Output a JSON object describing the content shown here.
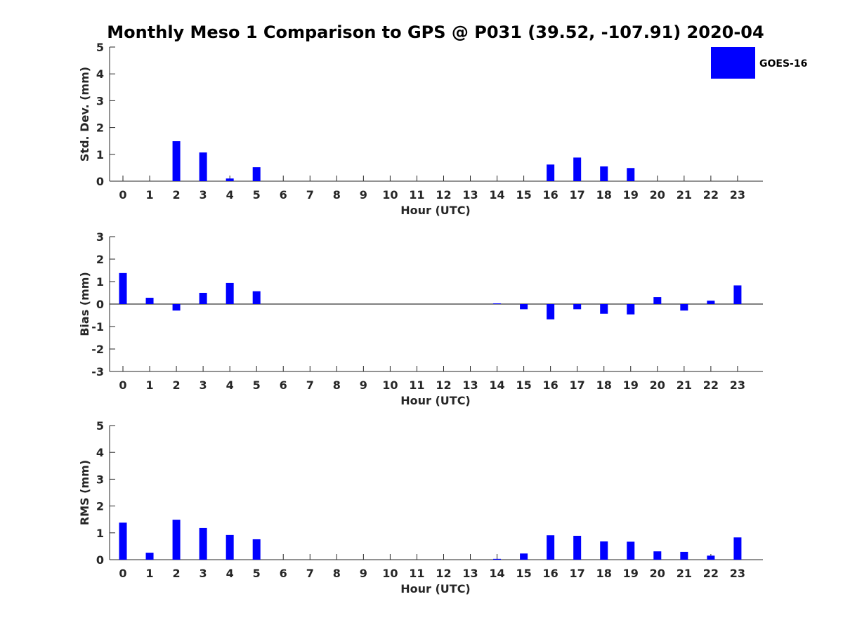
{
  "title": "Monthly Meso 1 Comparison to GPS @ P031 (39.52, -107.91) 2020-04",
  "legend": {
    "label": "GOES-16",
    "color": "#0000ff",
    "placement": "top-right"
  },
  "chart_data": [
    {
      "type": "bar",
      "ylabel": "Std. Dev. (mm)",
      "xlabel": "Hour (UTC)",
      "ylim": [
        0,
        5
      ],
      "yticks": [
        "0",
        "1",
        "2",
        "3",
        "4",
        "5"
      ],
      "categories": [
        "0",
        "1",
        "2",
        "3",
        "4",
        "5",
        "6",
        "7",
        "8",
        "9",
        "10",
        "11",
        "12",
        "13",
        "14",
        "15",
        "16",
        "17",
        "18",
        "19",
        "20",
        "21",
        "22",
        "23"
      ],
      "series": [
        {
          "name": "GOES-16",
          "color": "#0000ff",
          "values": [
            0,
            0,
            1.49,
            1.07,
            0.1,
            0.52,
            0,
            0,
            0,
            0,
            0,
            0,
            0,
            0,
            0,
            0,
            0.62,
            0.88,
            0.55,
            0.49,
            0,
            0,
            0,
            0
          ]
        }
      ]
    },
    {
      "type": "bar",
      "ylabel": "Bias (mm)",
      "xlabel": "Hour (UTC)",
      "ylim": [
        -3,
        3
      ],
      "yticks": [
        "-3",
        "-2",
        "-1",
        "0",
        "1",
        "2",
        "3"
      ],
      "categories": [
        "0",
        "1",
        "2",
        "3",
        "4",
        "5",
        "6",
        "7",
        "8",
        "9",
        "10",
        "11",
        "12",
        "13",
        "14",
        "15",
        "16",
        "17",
        "18",
        "19",
        "20",
        "21",
        "22",
        "23"
      ],
      "series": [
        {
          "name": "GOES-16",
          "color": "#0000ff",
          "values": [
            1.38,
            0.28,
            -0.29,
            0.5,
            0.94,
            0.57,
            0,
            0,
            0,
            0,
            0,
            0,
            0,
            0,
            0.03,
            -0.23,
            -0.68,
            -0.23,
            -0.43,
            -0.46,
            0.31,
            -0.29,
            0.15,
            0.83
          ]
        }
      ]
    },
    {
      "type": "bar",
      "ylabel": "RMS (mm)",
      "xlabel": "Hour (UTC)",
      "ylim": [
        0,
        5
      ],
      "yticks": [
        "0",
        "1",
        "2",
        "3",
        "4",
        "5"
      ],
      "categories": [
        "0",
        "1",
        "2",
        "3",
        "4",
        "5",
        "6",
        "7",
        "8",
        "9",
        "10",
        "11",
        "12",
        "13",
        "14",
        "15",
        "16",
        "17",
        "18",
        "19",
        "20",
        "21",
        "22",
        "23"
      ],
      "series": [
        {
          "name": "GOES-16",
          "color": "#0000ff",
          "values": [
            1.38,
            0.26,
            1.49,
            1.18,
            0.92,
            0.76,
            0,
            0,
            0,
            0,
            0,
            0,
            0,
            0,
            0.03,
            0.23,
            0.91,
            0.89,
            0.68,
            0.67,
            0.31,
            0.29,
            0.15,
            0.83
          ]
        }
      ]
    }
  ]
}
